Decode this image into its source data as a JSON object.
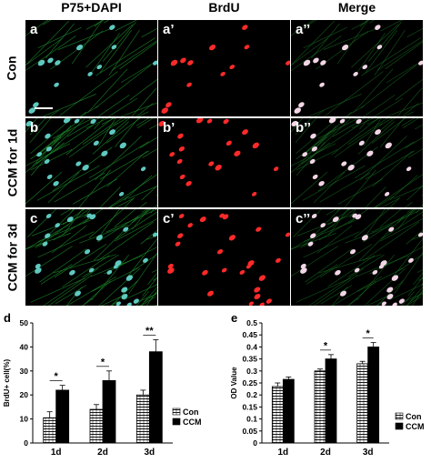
{
  "headers": {
    "col1": "P75+DAPI",
    "col2": "BrdU",
    "col3": "Merge"
  },
  "rows": [
    {
      "label": "Con",
      "panels": [
        "a",
        "a’",
        "a’’"
      ]
    },
    {
      "label": "CCM for 1d",
      "panels": [
        "b",
        "b’",
        "b’’"
      ]
    },
    {
      "label": "CCM for 3d",
      "panels": [
        "c",
        "c’",
        "c’’"
      ]
    }
  ],
  "colors": {
    "green": "#1d8a2a",
    "red": "#ff2a2a",
    "bar_con": "#ffffff",
    "bar_ccm": "#000000"
  },
  "chart_data": [
    {
      "panel_letter": "d",
      "type": "bar",
      "categories": [
        "1d",
        "2d",
        "3d"
      ],
      "ylabel": "BrdU+ cell(%)",
      "ylim": [
        0,
        50
      ],
      "yticks": [
        "0",
        "10",
        "20",
        "30",
        "40",
        "50"
      ],
      "series": [
        {
          "name": "Con",
          "values": [
            10.5,
            14,
            20
          ],
          "errors": [
            2.5,
            2,
            2
          ]
        },
        {
          "name": "CCM",
          "values": [
            22,
            26,
            38
          ],
          "errors": [
            2,
            4,
            5
          ]
        }
      ],
      "annotations": [
        "*",
        "*",
        "**"
      ],
      "legend_placement": "right"
    },
    {
      "panel_letter": "e",
      "type": "bar",
      "categories": [
        "1d",
        "2d",
        "3d"
      ],
      "ylabel": "OD Value",
      "ylim": [
        0,
        0.5
      ],
      "yticks": [
        "0",
        "0.05",
        "0.1",
        "0.15",
        "0.2",
        "0.25",
        "0.3",
        "0.35",
        "0.4",
        "0.45",
        "0.5"
      ],
      "series": [
        {
          "name": "Con",
          "values": [
            0.235,
            0.3,
            0.33
          ],
          "errors": [
            0.015,
            0.008,
            0.01
          ]
        },
        {
          "name": "CCM",
          "values": [
            0.265,
            0.35,
            0.4
          ],
          "errors": [
            0.01,
            0.018,
            0.018
          ]
        }
      ],
      "annotations": [
        "",
        "*",
        "*"
      ],
      "legend_placement": "bottom-right"
    }
  ]
}
